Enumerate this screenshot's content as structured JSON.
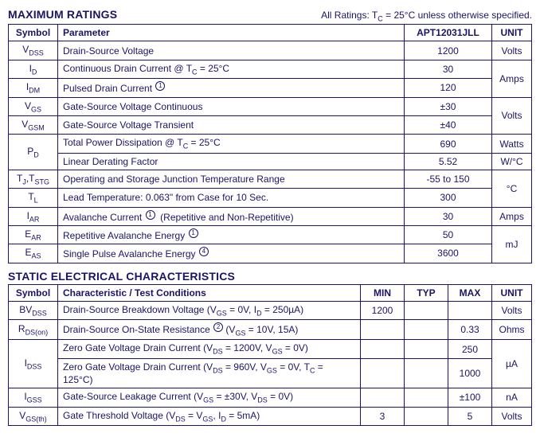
{
  "colors": {
    "text": "#1b1464",
    "border": "#1b1464",
    "background": "#ffffff"
  },
  "maxratings": {
    "title": "MAXIMUM RATINGS",
    "note_prefix": "All Ratings:  T",
    "note_sub": "C",
    "note_suffix": " = 25°C unless otherwise specified.",
    "headers": {
      "symbol": "Symbol",
      "parameter": "Parameter",
      "value": "APT12031JLL",
      "unit": "UNIT"
    },
    "rows": [
      {
        "sym_html": "V<sub>DSS</sub>",
        "param_html": "Drain-Source Voltage",
        "value": "1200",
        "unit": "Volts",
        "unit_rowspan": 1
      },
      {
        "sym_html": "I<sub>D</sub>",
        "param_html": "Continuous Drain Current @ T<sub>C</sub> = 25°C",
        "value": "30",
        "unit": "Amps",
        "unit_rowspan": 2
      },
      {
        "sym_html": "I<sub>DM</sub>",
        "param_html": "Pulsed Drain Current <sup class=\"circnum\">1</sup>",
        "value": "120"
      },
      {
        "sym_html": "V<sub>GS</sub>",
        "param_html": "Gate-Source Voltage Continuous",
        "value": "±30",
        "unit": "Volts",
        "unit_rowspan": 2
      },
      {
        "sym_html": "V<sub>GSM</sub>",
        "param_html": "Gate-Source Voltage Transient",
        "value": "±40"
      },
      {
        "sym_html": "P<sub>D</sub>",
        "sym_rowspan": 2,
        "param_html": "Total Power Dissipation @ T<sub>C</sub> = 25°C",
        "value": "690",
        "unit": "Watts",
        "unit_rowspan": 1
      },
      {
        "param_html": "Linear Derating Factor",
        "value": "5.52",
        "unit": "W/°C",
        "unit_rowspan": 1
      },
      {
        "sym_html": "T<sub>J</sub>,T<sub>STG</sub>",
        "param_html": "Operating and Storage Junction Temperature Range",
        "value": "-55 to 150",
        "unit": "°C",
        "unit_rowspan": 2
      },
      {
        "sym_html": "T<sub>L</sub>",
        "param_html": "Lead Temperature: 0.063\" from Case for 10 Sec.",
        "value": "300"
      },
      {
        "sym_html": "I<sub>AR</sub>",
        "param_html": "Avalanche Current <sup class=\"circnum\">1</sup>&nbsp;&nbsp;(Repetitive and Non-Repetitive)",
        "value": "30",
        "unit": "Amps",
        "unit_rowspan": 1
      },
      {
        "sym_html": "E<sub>AR</sub>",
        "param_html": "Repetitive Avalanche Energy <sup class=\"circnum\">1</sup>",
        "value": "50",
        "unit": "mJ",
        "unit_rowspan": 2
      },
      {
        "sym_html": "E<sub>AS</sub>",
        "param_html": "Single Pulse Avalanche Energy <sup class=\"circnum\">4</sup>",
        "value": "3600"
      }
    ]
  },
  "static": {
    "title": "STATIC ELECTRICAL CHARACTERISTICS",
    "headers": {
      "symbol": "Symbol",
      "char": "Characteristic / Test Conditions",
      "min": "MIN",
      "typ": "TYP",
      "max": "MAX",
      "unit": "UNIT"
    },
    "rows": [
      {
        "sym_html": "BV<sub>DSS</sub>",
        "char_html": "Drain-Source Breakdown Voltage  (V<sub>GS</sub> = 0V, I<sub>D</sub> = 250µA)",
        "min": "1200",
        "typ": "",
        "max": "",
        "unit": "Volts",
        "unit_rowspan": 1
      },
      {
        "sym_html": "R<sub>DS(on)</sub>",
        "char_html": "Drain-Source On-State Resistance <sup class=\"circnum\">2</sup>  (V<sub>GS</sub> = 10V, 15A)",
        "min": "",
        "typ": "",
        "max": "0.33",
        "unit": "Ohms",
        "unit_rowspan": 1
      },
      {
        "sym_html": "I<sub>DSS</sub>",
        "sym_rowspan": 2,
        "char_html": "Zero Gate Voltage Drain Current  (V<sub>DS</sub> = 1200V, V<sub>GS</sub> = 0V)",
        "min": "",
        "typ": "",
        "max": "250",
        "unit": "µA",
        "unit_rowspan": 2
      },
      {
        "char_html": "Zero Gate Voltage Drain Current  (V<sub>DS</sub> = 960V, V<sub>GS</sub> = 0V, T<sub>C</sub> = 125°C)",
        "min": "",
        "typ": "",
        "max": "1000"
      },
      {
        "sym_html": "I<sub>GSS</sub>",
        "char_html": "Gate-Source Leakage Current  (V<sub>GS</sub> = ±30V, V<sub>DS</sub> = 0V)",
        "min": "",
        "typ": "",
        "max": "±100",
        "unit": "nA",
        "unit_rowspan": 1
      },
      {
        "sym_html": "V<sub>GS(th)</sub>",
        "char_html": "Gate Threshold Voltage  (V<sub>DS</sub> = V<sub>GS</sub>, I<sub>D</sub> = 5mA)",
        "min": "3",
        "typ": "",
        "max": "5",
        "unit": "Volts",
        "unit_rowspan": 1
      }
    ]
  }
}
